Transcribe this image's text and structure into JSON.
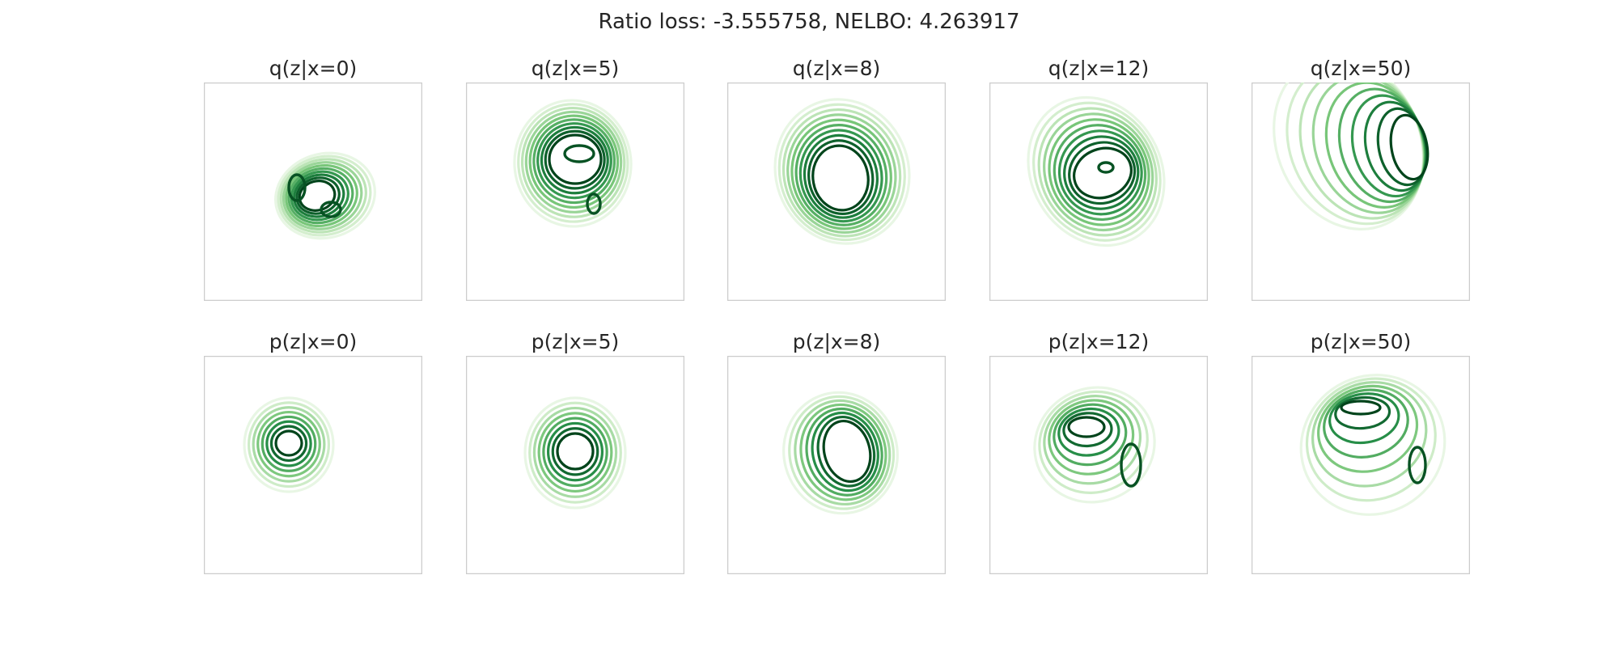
{
  "figure": {
    "title": "Ratio loss: -3.555758, NELBO: 4.263917"
  },
  "chart_data": {
    "type": "contour",
    "colormap": "Greens",
    "grid": false,
    "axes_ticks": false,
    "rows": [
      {
        "name": "q",
        "panels": [
          {
            "title": "q(z|x=0)",
            "x_condition": 0,
            "levels": 10,
            "shape": "compact-bimodal",
            "peaks": [
              [
                -0.15,
                -0.05
              ],
              [
                0.15,
                -0.25
              ]
            ]
          },
          {
            "title": "q(z|x=5)",
            "x_condition": 5,
            "levels": 10,
            "shape": "broad-multimodal",
            "peaks": [
              [
                0.0,
                0.2
              ],
              [
                0.25,
                -0.2
              ]
            ]
          },
          {
            "title": "q(z|x=8)",
            "x_condition": 8,
            "levels": 10,
            "shape": "unimodal-skewed",
            "peaks": [
              [
                0.0,
                0.0
              ]
            ]
          },
          {
            "title": "q(z|x=12)",
            "x_condition": 12,
            "levels": 10,
            "shape": "unimodal-tilted",
            "peaks": [
              [
                0.1,
                0.2
              ]
            ]
          },
          {
            "title": "q(z|x=50)",
            "x_condition": 50,
            "levels": 10,
            "shape": "elongated-tilted",
            "peaks": [
              [
                0.4,
                0.3
              ]
            ]
          }
        ]
      },
      {
        "name": "p",
        "panels": [
          {
            "title": "p(z|x=0)",
            "x_condition": 0,
            "levels": 8,
            "shape": "unimodal",
            "peaks": [
              [
                0.0,
                0.0
              ]
            ]
          },
          {
            "title": "p(z|x=5)",
            "x_condition": 5,
            "levels": 8,
            "shape": "unimodal",
            "peaks": [
              [
                0.0,
                0.0
              ]
            ]
          },
          {
            "title": "p(z|x=8)",
            "x_condition": 8,
            "levels": 8,
            "shape": "unimodal-skewed",
            "peaks": [
              [
                0.1,
                0.1
              ]
            ]
          },
          {
            "title": "p(z|x=12)",
            "x_condition": 12,
            "levels": 8,
            "shape": "bimodal-curved",
            "peaks": [
              [
                -0.1,
                0.4
              ],
              [
                0.3,
                0.0
              ]
            ]
          },
          {
            "title": "p(z|x=50)",
            "x_condition": 50,
            "levels": 8,
            "shape": "banana",
            "peaks": [
              [
                -0.1,
                0.6
              ],
              [
                0.6,
                0.0
              ]
            ]
          }
        ]
      }
    ]
  }
}
